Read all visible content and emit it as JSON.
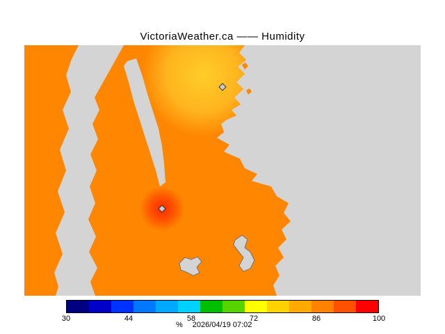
{
  "title": "VictoriaWeather.ca —— Humidity",
  "map": {
    "water_color": "#d4d4d4",
    "land_color": "#ff8600",
    "lake_stroke": "#6b6b6b",
    "high_humidity_zone": {
      "inner": "#ffcd28",
      "mid": "#ffb41e",
      "outer": "#ff8600"
    },
    "hot_spot": {
      "inner": "#ff2800",
      "mid": "#ff5500",
      "outer": "#ff8600"
    },
    "marker": {
      "fill": "#cccccc",
      "stroke": "#333333"
    },
    "stations": [
      {
        "id": "north-station",
        "zone_value_estimate": 86
      },
      {
        "id": "south-station",
        "zone_value_estimate": 97
      }
    ]
  },
  "scale": {
    "min": 30,
    "max": 100,
    "tick_labels": [
      "30",
      "44",
      "58",
      "72",
      "86",
      "100"
    ],
    "colors": [
      "#000082",
      "#0000c8",
      "#0032ff",
      "#0078ff",
      "#00a8ff",
      "#00d2ff",
      "#00be00",
      "#55d400",
      "#ffff00",
      "#ffd200",
      "#ffaa00",
      "#ff8200",
      "#ff5000",
      "#ff0000"
    ],
    "border_color": "#000000"
  },
  "footer": {
    "unit": "%",
    "timestamp": "2026/04/19 07:02"
  }
}
